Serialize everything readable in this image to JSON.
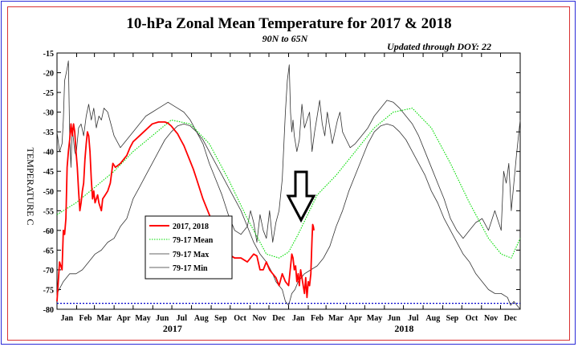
{
  "chart_data": {
    "type": "line",
    "title": "10-hPa Zonal Mean Temperature for 2017 & 2018",
    "subtitle": "90N to 65N",
    "note": "Updated through DOY:  22",
    "ylabel": "TEMPERATURE C",
    "ylim": [
      -80,
      -15
    ],
    "yticks": [
      -15,
      -20,
      -25,
      -30,
      -35,
      -40,
      -45,
      -50,
      -55,
      -60,
      -65,
      -70,
      -75,
      -80
    ],
    "xlim": [
      0,
      730
    ],
    "xticklabels": [
      "Jan",
      "Feb",
      "Mar",
      "Apr",
      "May",
      "Jun",
      "Jul",
      "Aug",
      "Sep",
      "Oct",
      "Nov",
      "Dec",
      "Jan",
      "Feb",
      "Mar",
      "Apr",
      "May",
      "Jun",
      "Jul",
      "Aug",
      "Sep",
      "Oct",
      "Nov",
      "Dec"
    ],
    "year_labels": [
      "2017",
      "2018"
    ],
    "reference_line": -78.5,
    "colors": {
      "observed": "#ff0000",
      "mean": "#00dd00",
      "minmax": "#333333",
      "reference": "#0000cc",
      "arrow": "#000000"
    },
    "legend_placement": "center-left",
    "series": [
      {
        "name": "2017, 2018",
        "x": [
          0,
          4,
          8,
          10,
          12,
          14,
          16,
          18,
          20,
          22,
          24,
          26,
          28,
          30,
          32,
          34,
          36,
          38,
          40,
          42,
          44,
          46,
          48,
          50,
          52,
          54,
          56,
          58,
          60,
          62,
          64,
          66,
          68,
          70,
          72,
          76,
          80,
          84,
          88,
          92,
          96,
          100,
          105,
          110,
          115,
          120,
          130,
          140,
          150,
          160,
          165,
          170,
          175,
          180,
          185,
          190,
          195,
          200,
          205,
          210,
          215,
          220,
          230,
          240,
          250,
          260,
          270,
          280,
          290,
          300,
          305,
          310,
          315,
          320,
          325,
          330,
          335,
          340,
          345,
          350,
          355,
          360,
          365,
          370,
          372,
          374,
          376,
          378,
          380,
          382,
          384,
          386,
          388,
          390,
          392,
          394,
          396,
          398,
          400,
          402,
          403,
          404,
          405
        ],
        "values": [
          -78,
          -68,
          -70,
          -60,
          -61,
          -57,
          -44,
          -40,
          -37,
          -33,
          -36,
          -33,
          -35,
          -40,
          -44,
          -50,
          -55,
          -53,
          -50,
          -48,
          -42,
          -38,
          -35,
          -36,
          -40,
          -47,
          -52,
          -50,
          -53,
          -52,
          -51,
          -53,
          -54,
          -55,
          -52,
          -51,
          -50,
          -48,
          -43,
          -44,
          -43.5,
          -43,
          -42,
          -41,
          -39,
          -37.5,
          -36,
          -34.5,
          -33,
          -32.5,
          -32.5,
          -32.5,
          -32.8,
          -33.5,
          -34.5,
          -35.5,
          -37,
          -38.5,
          -40.5,
          -42.5,
          -44.5,
          -47,
          -52,
          -56,
          -60,
          -63,
          -66,
          -67,
          -67,
          -68,
          -67,
          -66,
          -66.5,
          -70,
          -70,
          -68,
          -70,
          -71,
          -72,
          -74,
          -71,
          -73,
          -74,
          -66,
          -67,
          -70,
          -69,
          -73,
          -71,
          -74,
          -70,
          -72,
          -74,
          -76,
          -72,
          -77,
          -73,
          -74,
          -71,
          -62,
          -58.5,
          -59,
          -60
        ]
      },
      {
        "name": "79-17 Mean",
        "x": [
          0,
          30,
          60,
          90,
          120,
          150,
          180,
          210,
          240,
          270,
          300,
          330,
          350,
          365,
          380,
          410,
          440,
          470,
          500,
          530,
          560,
          590,
          620,
          650,
          680,
          700,
          716,
          730
        ],
        "values": [
          -56,
          -53,
          -49,
          -45,
          -40,
          -36,
          -32,
          -33,
          -38,
          -47,
          -57,
          -66,
          -67,
          -65.5,
          -61,
          -51,
          -46,
          -40,
          -34,
          -30,
          -29,
          -34,
          -43,
          -53,
          -62,
          -66,
          -67,
          -62
        ]
      },
      {
        "name": "79-17 Max",
        "x": [
          0,
          4,
          8,
          10,
          12,
          16,
          18,
          20,
          22,
          24,
          28,
          30,
          34,
          38,
          42,
          46,
          50,
          54,
          58,
          62,
          66,
          70,
          74,
          80,
          90,
          100,
          110,
          120,
          130,
          140,
          150,
          160,
          170,
          175,
          180,
          190,
          200,
          210,
          220,
          230,
          240,
          250,
          260,
          270,
          280,
          290,
          300,
          305,
          310,
          315,
          320,
          325,
          330,
          335,
          340,
          345,
          350,
          355,
          360,
          363,
          366,
          368,
          370,
          372,
          374,
          378,
          382,
          386,
          390,
          394,
          398,
          402,
          406,
          410,
          414,
          418,
          422,
          426,
          430,
          434,
          438,
          442,
          446,
          450,
          456,
          462,
          470,
          480,
          490,
          500,
          510,
          520,
          530,
          540,
          550,
          560,
          570,
          580,
          590,
          600,
          610,
          620,
          630,
          640,
          650,
          660,
          670,
          680,
          690,
          700,
          704,
          708,
          712,
          716,
          720,
          724,
          728,
          730
        ],
        "values": [
          -35,
          -40,
          -38,
          -32,
          -22,
          -19,
          -17,
          -36,
          -44,
          -34,
          -40,
          -41,
          -34,
          -33,
          -36,
          -31,
          -28,
          -32,
          -29,
          -34,
          -31,
          -32,
          -29,
          -30,
          -36,
          -39,
          -37,
          -35,
          -33,
          -31,
          -30,
          -29,
          -28,
          -27.5,
          -28,
          -29,
          -30,
          -32,
          -35,
          -38,
          -43,
          -47,
          -51,
          -56,
          -60,
          -61,
          -59,
          -55,
          -58,
          -63,
          -56,
          -60,
          -62,
          -55,
          -63,
          -58,
          -55,
          -47,
          -30,
          -22,
          -18,
          -30,
          -35,
          -32,
          -36,
          -40,
          -37,
          -28,
          -34,
          -32,
          -30,
          -40,
          -35,
          -31,
          -27,
          -33,
          -36,
          -30,
          -34,
          -38,
          -35,
          -32,
          -30,
          -35,
          -37,
          -39,
          -38,
          -36,
          -34,
          -31,
          -29,
          -27,
          -27.5,
          -29,
          -31,
          -33,
          -36,
          -40,
          -44,
          -48,
          -52,
          -57,
          -60,
          -62,
          -60,
          -58,
          -57,
          -60,
          -55,
          -60,
          -45,
          -48,
          -43,
          -55,
          -48,
          -41,
          -35,
          -32
        ]
      },
      {
        "name": "79-17 Min",
        "x": [
          0,
          10,
          20,
          30,
          40,
          50,
          60,
          70,
          80,
          90,
          100,
          110,
          120,
          130,
          140,
          150,
          160,
          170,
          180,
          190,
          200,
          210,
          220,
          230,
          240,
          250,
          260,
          270,
          280,
          290,
          300,
          310,
          320,
          330,
          340,
          345,
          350,
          355,
          360,
          365,
          370,
          375,
          380,
          390,
          400,
          410,
          420,
          430,
          440,
          450,
          460,
          470,
          480,
          490,
          500,
          510,
          520,
          530,
          540,
          550,
          560,
          570,
          580,
          590,
          600,
          610,
          620,
          630,
          640,
          650,
          660,
          670,
          680,
          690,
          700,
          710,
          715,
          720,
          725,
          730
        ],
        "values": [
          -76,
          -73,
          -71,
          -71,
          -70,
          -68,
          -66,
          -65,
          -63,
          -62,
          -59,
          -57,
          -52,
          -49,
          -46,
          -43,
          -40,
          -37,
          -35,
          -33.5,
          -33,
          -33.5,
          -35,
          -37,
          -40,
          -43,
          -46,
          -49,
          -52,
          -55,
          -59,
          -63,
          -66,
          -68,
          -71,
          -73,
          -74,
          -75,
          -78,
          -79,
          -76,
          -75,
          -73,
          -71,
          -70,
          -69,
          -67,
          -64,
          -59,
          -55,
          -50,
          -46,
          -42,
          -38,
          -35,
          -33.5,
          -33,
          -33.5,
          -35,
          -37,
          -40,
          -43,
          -46,
          -50,
          -53,
          -57,
          -60,
          -63,
          -66,
          -68,
          -71,
          -73,
          -75,
          -76,
          -76,
          -77,
          -79,
          -78,
          -79,
          -80
        ]
      }
    ]
  }
}
